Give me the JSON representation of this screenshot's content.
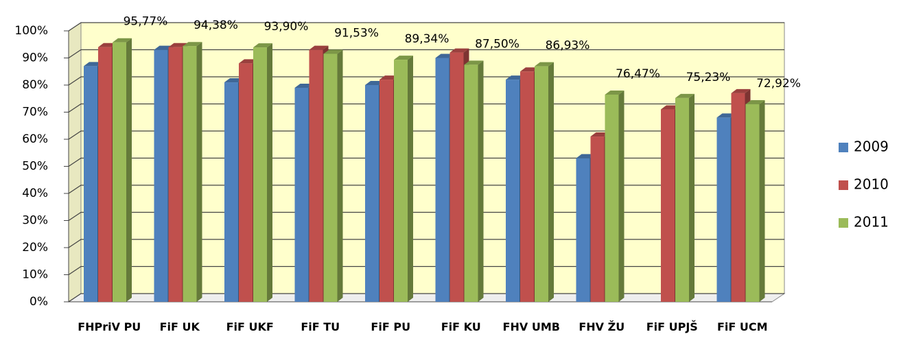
{
  "chart_data": {
    "type": "bar3d",
    "categories": [
      "FHPriV PU",
      "FiF UK",
      "FiF  UKF",
      "FiF TU",
      "FiF PU",
      "FiF  KU",
      "FHV UMB",
      "FHV ŽU",
      "FiF UPJŠ",
      "FiF UCM"
    ],
    "series": [
      {
        "name": "2009",
        "color": "#4f81bd",
        "values": [
          87,
          93,
          81,
          79,
          80,
          90,
          82,
          53,
          null,
          68
        ]
      },
      {
        "name": "2010",
        "color": "#c0504d",
        "values": [
          94,
          94,
          88,
          93,
          82,
          92,
          85,
          61,
          71,
          77
        ]
      },
      {
        "name": "2011",
        "color": "#9bbb59",
        "values": [
          95.77,
          94.38,
          93.9,
          91.53,
          89.34,
          87.5,
          86.93,
          76.47,
          75.23,
          72.92
        ],
        "value_labels": [
          "95,77%",
          "94,38%",
          "93,90%",
          "91,53%",
          "89,34%",
          "87,50%",
          "86,93%",
          "76,47%",
          "75,23%",
          "72,92%"
        ]
      }
    ],
    "ylim": [
      0,
      100
    ],
    "yticks": [
      {
        "value": 0,
        "label": "0%"
      },
      {
        "value": 10,
        "label": "10%"
      },
      {
        "value": 20,
        "label": "20%"
      },
      {
        "value": 30,
        "label": "30%"
      },
      {
        "value": 40,
        "label": "40%"
      },
      {
        "value": 50,
        "label": "50%"
      },
      {
        "value": 60,
        "label": "60%"
      },
      {
        "value": 70,
        "label": "70%"
      },
      {
        "value": 80,
        "label": "80%"
      },
      {
        "value": 90,
        "label": "90%"
      },
      {
        "value": 100,
        "label": "100%"
      }
    ],
    "grid": true,
    "legend": "right"
  }
}
